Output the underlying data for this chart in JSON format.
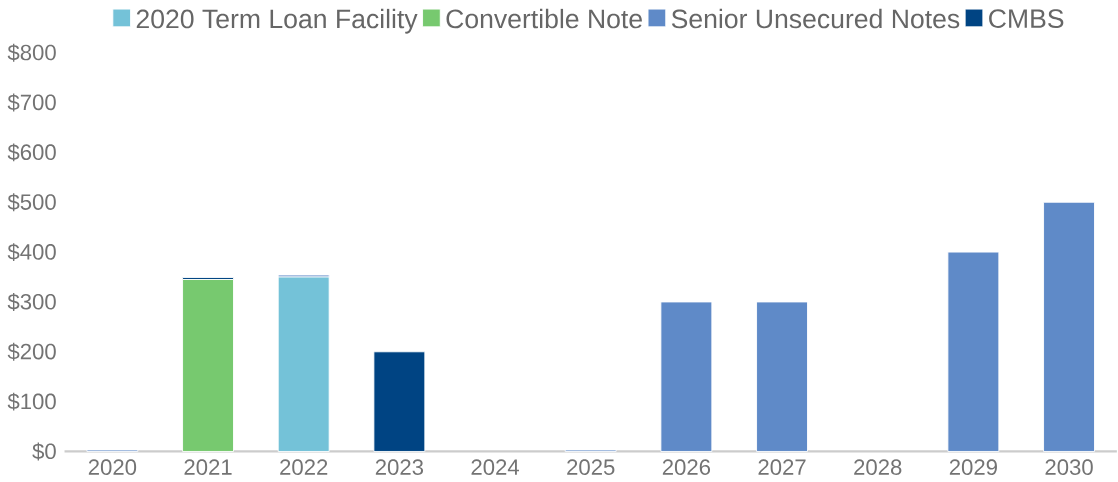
{
  "chart_data": {
    "type": "bar",
    "stacked": true,
    "categories": [
      "2020",
      "2021",
      "2022",
      "2023",
      "2024",
      "2025",
      "2026",
      "2027",
      "2028",
      "2029",
      "2030"
    ],
    "series": [
      {
        "name": "2020 Term Loan Facility",
        "color": "#74c2d8",
        "values": [
          null,
          null,
          350,
          null,
          null,
          null,
          null,
          null,
          null,
          null,
          null
        ]
      },
      {
        "name": "Convertible Note",
        "color": "#77c96f",
        "values": [
          null,
          345,
          null,
          null,
          null,
          null,
          null,
          null,
          null,
          null,
          null
        ]
      },
      {
        "name": "Senior Unsecured Notes",
        "color": "#5f8ac8",
        "values": [
          3,
          null,
          4,
          null,
          null,
          3,
          300,
          300,
          null,
          400,
          500
        ]
      },
      {
        "name": "CMBS",
        "color": "#004483",
        "values": [
          null,
          4,
          null,
          200,
          null,
          null,
          null,
          null,
          null,
          null,
          null
        ]
      }
    ],
    "ylim": [
      0,
      800
    ],
    "yticks": [
      {
        "value": 0,
        "label": "$0"
      },
      {
        "value": 100,
        "label": "$100"
      },
      {
        "value": 200,
        "label": "$200"
      },
      {
        "value": 300,
        "label": "$300"
      },
      {
        "value": 400,
        "label": "$400"
      },
      {
        "value": 500,
        "label": "$500"
      },
      {
        "value": 600,
        "label": "$600"
      },
      {
        "value": 700,
        "label": "$700"
      },
      {
        "value": 800,
        "label": "$800"
      }
    ],
    "legend": "top",
    "grid": false
  }
}
